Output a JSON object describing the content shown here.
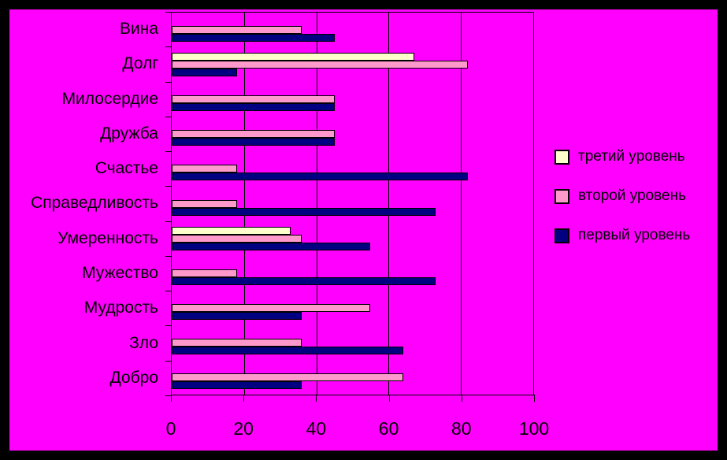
{
  "window": {
    "background_color": "#ff00ff",
    "frame_color": "#000000"
  },
  "chart_data": {
    "type": "bar",
    "orientation": "horizontal",
    "title": "",
    "xlabel": "",
    "ylabel": "",
    "categories": [
      "Вина",
      "Долг",
      "Милосердие",
      "Дружба",
      "Счастье",
      "Справедливость",
      "Умеренность",
      "Мужество",
      "Мудрость",
      "Зло",
      "Добро"
    ],
    "series": [
      {
        "name": "третий уровень",
        "color": "#ffffcc",
        "values": [
          0,
          67,
          0,
          0,
          0,
          0,
          33,
          0,
          0,
          0,
          0
        ]
      },
      {
        "name": "второй уровень",
        "color": "#ff99cc",
        "values": [
          36,
          82,
          45,
          45,
          18,
          18,
          36,
          18,
          55,
          36,
          64
        ]
      },
      {
        "name": "первый уровень",
        "color": "#000080",
        "values": [
          45,
          18,
          45,
          45,
          82,
          73,
          55,
          73,
          36,
          64,
          36
        ]
      }
    ],
    "xlim": [
      0,
      100
    ],
    "x_ticks": [
      0,
      20,
      40,
      60,
      80,
      100
    ],
    "grid": true,
    "gridline_color": "#000000",
    "bar_border_color": "#000000",
    "plot_background": "#ff00ff",
    "legend_position": "right"
  }
}
